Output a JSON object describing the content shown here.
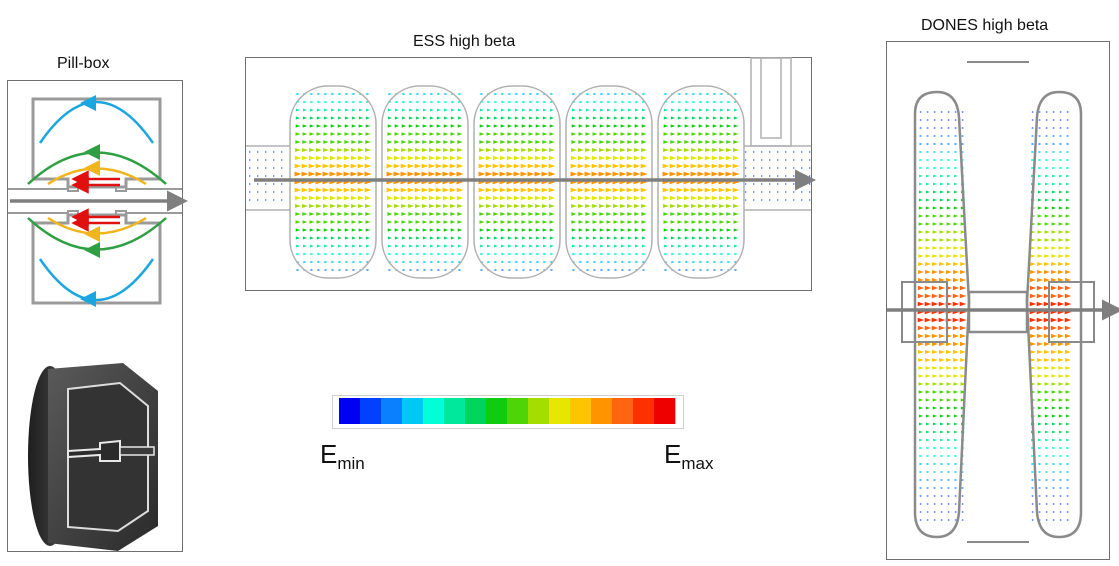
{
  "panels": {
    "pillbox": {
      "title": "Pill-box"
    },
    "ess": {
      "title": "ESS high beta"
    },
    "dones": {
      "title": "DONES high beta"
    }
  },
  "colorbar": {
    "colors": [
      "#0000f2",
      "#0040ff",
      "#0a80ff",
      "#00c8f5",
      "#00ffd8",
      "#00e89b",
      "#00d45a",
      "#10cc10",
      "#4fd40a",
      "#a4dd00",
      "#e6e600",
      "#ffc400",
      "#ff9400",
      "#ff6410",
      "#ff3000",
      "#ee0000"
    ],
    "min_label": {
      "base": "E",
      "sub": "min"
    },
    "max_label": {
      "base": "E",
      "sub": "max"
    }
  },
  "colors": {
    "beam_arrow": "#7f7f7f",
    "cavity_wall": "#a8a8a8",
    "pillbox_field": {
      "outer": "#1ca6e0",
      "mid": "#2ea043",
      "inner": "#f0b51c",
      "center": "#e01010"
    }
  }
}
